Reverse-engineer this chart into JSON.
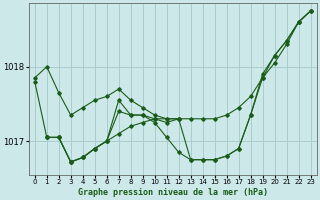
{
  "background_color": "#cce8e8",
  "grid_color": "#aacccc",
  "line_color": "#1a5c1a",
  "xlabel": "Graphe pression niveau de la mer (hPa)",
  "xlim": [
    -0.5,
    23.5
  ],
  "ylim": [
    1016.55,
    1018.85
  ],
  "yticks": [
    1017,
    1018
  ],
  "xticks": [
    0,
    1,
    2,
    3,
    4,
    5,
    6,
    7,
    8,
    9,
    10,
    11,
    12,
    13,
    14,
    15,
    16,
    17,
    18,
    19,
    20,
    21,
    22,
    23
  ],
  "series": [
    {
      "x": [
        0,
        1,
        2,
        3,
        4,
        5,
        6,
        7,
        8,
        9,
        10,
        11,
        12
      ],
      "y": [
        1017.85,
        1018.0,
        1017.65,
        1017.35,
        1017.45,
        1017.55,
        1017.6,
        1017.7,
        1017.55,
        1017.45,
        1017.35,
        1017.3,
        1017.3
      ]
    },
    {
      "x": [
        1,
        2,
        3,
        4,
        5,
        6,
        7,
        8,
        9,
        10,
        11,
        12,
        13,
        14,
        15,
        16,
        17,
        18,
        19,
        20,
        21,
        22,
        23
      ],
      "y": [
        1017.05,
        1017.05,
        1016.72,
        1016.78,
        1016.9,
        1017.0,
        1017.1,
        1017.2,
        1017.25,
        1017.3,
        1017.3,
        1017.3,
        1017.3,
        1017.3,
        1017.3,
        1017.35,
        1017.45,
        1017.6,
        1017.85,
        1018.05,
        1018.3,
        1018.6,
        1018.75
      ]
    },
    {
      "x": [
        1,
        2,
        3,
        4,
        5,
        6,
        7,
        8,
        9,
        10,
        11,
        12,
        13,
        14,
        15,
        16,
        17,
        18,
        19,
        20,
        21,
        22,
        23
      ],
      "y": [
        1017.05,
        1017.05,
        1016.72,
        1016.78,
        1016.9,
        1017.0,
        1017.55,
        1017.35,
        1017.35,
        1017.25,
        1017.05,
        1016.85,
        1016.75,
        1016.75,
        1016.75,
        1016.8,
        1016.9,
        1017.35,
        1017.9,
        1018.15,
        1018.35,
        1018.6,
        1018.75
      ]
    },
    {
      "x": [
        0,
        1,
        2,
        3,
        4,
        5,
        6,
        7,
        8,
        9,
        10,
        11,
        12,
        13,
        14,
        15,
        16,
        17,
        18,
        19,
        20,
        21,
        22,
        23
      ],
      "y": [
        1017.8,
        1017.05,
        1017.05,
        1016.72,
        1016.78,
        1016.9,
        1017.0,
        1017.4,
        1017.35,
        1017.35,
        1017.3,
        1017.25,
        1017.3,
        1016.75,
        1016.75,
        1016.75,
        1016.8,
        1016.9,
        1017.35,
        1017.85,
        1018.15,
        1018.35,
        1018.6,
        1018.75
      ]
    }
  ]
}
